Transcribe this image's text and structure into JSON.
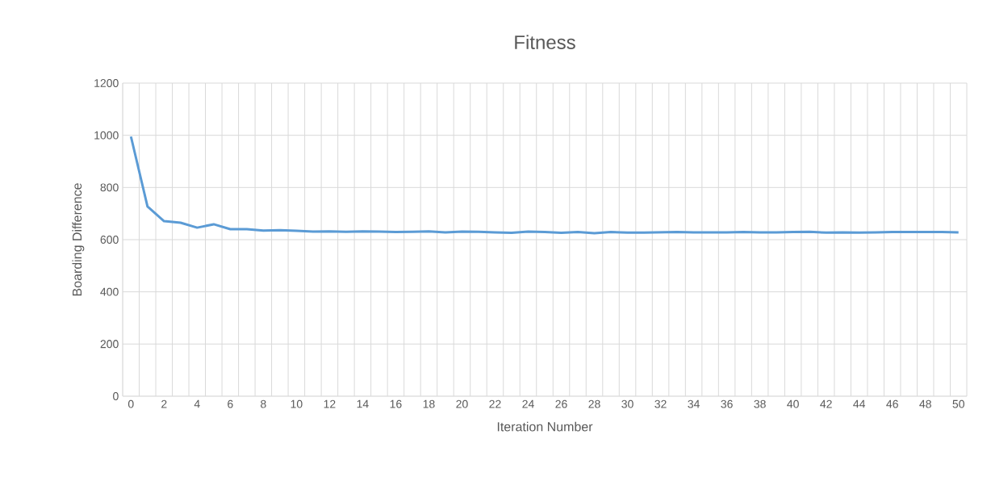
{
  "chart_data": {
    "type": "line",
    "title": "Fitness",
    "xlabel": "Iteration Number",
    "ylabel": "Boarding Difference",
    "categories": [
      "0",
      null,
      "2",
      null,
      "4",
      null,
      "6",
      null,
      "8",
      null,
      "10",
      null,
      "12",
      null,
      "14",
      null,
      "16",
      null,
      "18",
      null,
      "20",
      null,
      "22",
      null,
      "24",
      null,
      "26",
      null,
      "28",
      null,
      "30",
      null,
      "32",
      null,
      "34",
      null,
      "36",
      null,
      "38",
      null,
      "40",
      null,
      "42",
      null,
      "44",
      null,
      "46",
      null,
      "48",
      null,
      "50"
    ],
    "series": [
      {
        "color": "#5b9bd5",
        "values": [
          995,
          727,
          671,
          665,
          646,
          659,
          640,
          640,
          635,
          636,
          634,
          631,
          632,
          630,
          632,
          631,
          629,
          630,
          632,
          628,
          631,
          630,
          628,
          626,
          631,
          629,
          626,
          629,
          625,
          629,
          627,
          627,
          628,
          629,
          628,
          628,
          628,
          629,
          628,
          628,
          629,
          630,
          627,
          628,
          627,
          628,
          629,
          629,
          629,
          629,
          628
        ]
      }
    ],
    "ylim": [
      0,
      1200
    ],
    "yticks": [
      0,
      200,
      400,
      600,
      800,
      1000,
      1200
    ],
    "grid": true,
    "legend": false,
    "marker": "none",
    "line_style": "solid"
  }
}
